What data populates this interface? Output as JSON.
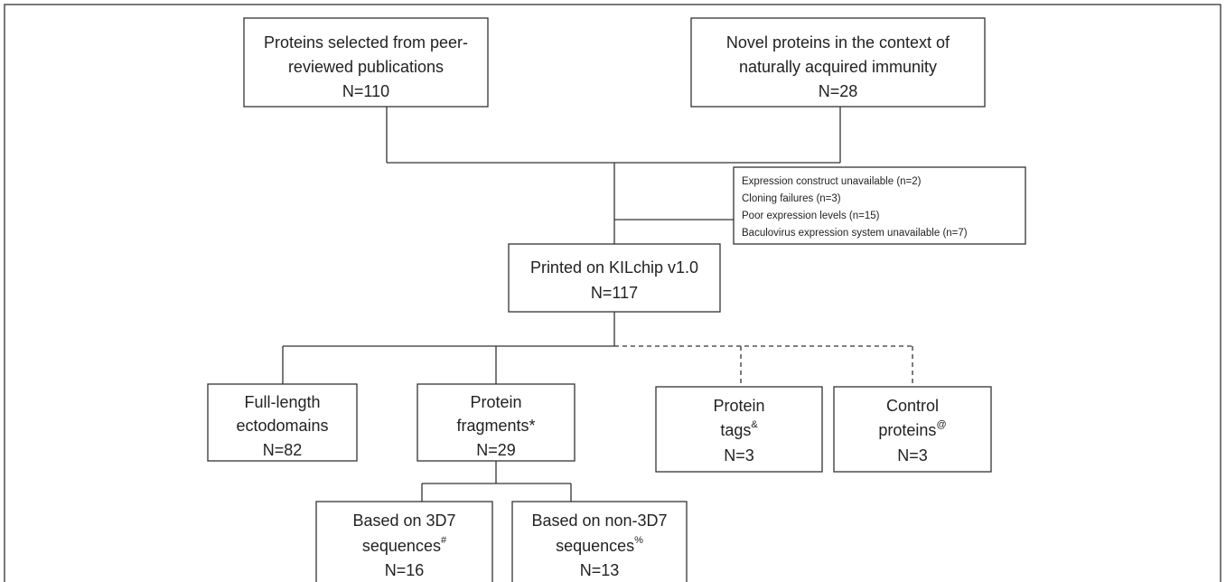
{
  "nodes": [
    {
      "lines": [
        "Proteins selected from peer-",
        "reviewed publications",
        "N=110"
      ]
    },
    {
      "lines": [
        "Novel proteins in the context of",
        "naturally acquired immunity",
        "N=28"
      ]
    },
    {
      "lines": [
        "Printed on KILchip v1.0",
        "N=117"
      ]
    },
    {
      "lines": [
        "Full-length",
        "ectodomains",
        "N=82"
      ]
    },
    {
      "lines": [
        "Protein",
        "fragments*",
        "N=29"
      ]
    },
    {
      "lines": [
        "Protein",
        "tags",
        "N=3"
      ],
      "sup": "&"
    },
    {
      "lines": [
        "Control",
        "proteins",
        "N=3"
      ],
      "sup": "@"
    },
    {
      "lines": [
        "Based on 3D7",
        "sequences",
        "N=16"
      ],
      "sup": "#"
    },
    {
      "lines": [
        "Based on non-3D7",
        "sequences",
        "N=13"
      ],
      "sup": "%"
    }
  ],
  "note": {
    "lines": [
      "Expression construct unavailable (n=2)",
      "Cloning failures (n=3)",
      "Poor expression levels (n=15)",
      "Baculovirus expression system unavailable (n=7)"
    ]
  }
}
